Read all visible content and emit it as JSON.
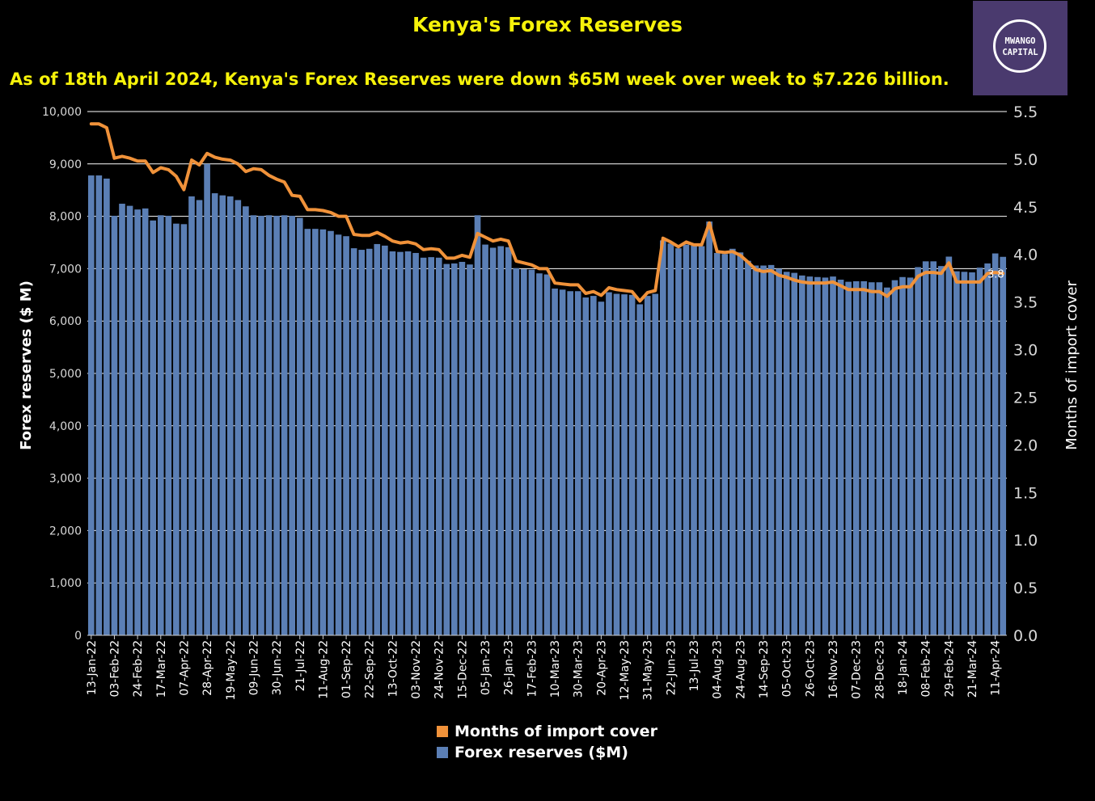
{
  "logo": {
    "line1": "MWANGO",
    "line2": "CAPITAL"
  },
  "colors": {
    "bars": "#5b7fb5",
    "line": "#f0923a",
    "title": "#f6f20a",
    "background": "#000000",
    "logo_bg": "#4a3a6e"
  },
  "chart_data": {
    "type": "bar+line",
    "title": "Kenya's Forex Reserves",
    "subtitle": "As of 18th April 2024, Kenya's Forex Reserves were down $65M week over week to $7.226 billion.",
    "ylabel": "Forex reserves ($ M)",
    "y2label": "Months of import cover",
    "ylim": [
      0,
      10000
    ],
    "y2lim": [
      0,
      5.5
    ],
    "yticks": [
      "0",
      "1,000",
      "2,000",
      "3,000",
      "4,000",
      "5,000",
      "6,000",
      "7,000",
      "8,000",
      "9,000",
      "10,000"
    ],
    "y2ticks": [
      "0.0",
      "0.5",
      "1.0",
      "1.5",
      "2.0",
      "2.5",
      "3.0",
      "3.5",
      "4.0",
      "4.5",
      "5.0",
      "5.5"
    ],
    "xtick_labels": [
      "13-Jan-22",
      "03-Feb-22",
      "24-Feb-22",
      "17-Mar-22",
      "07-Apr-22",
      "28-Apr-22",
      "19-May-22",
      "09-Jun-22",
      "30-Jun-22",
      "21-Jul-22",
      "11-Aug-22",
      "01-Sep-22",
      "22-Sep-22",
      "13-Oct-22",
      "03-Nov-22",
      "24-Nov-22",
      "15-Dec-22",
      "05-Jan-23",
      "26-Jan-23",
      "17-Feb-23",
      "10-Mar-23",
      "30-Mar-23",
      "20-Apr-23",
      "12-May-23",
      "31-May-23",
      "22-Jun-23",
      "13-Jul-23",
      "04-Aug-23",
      "24-Aug-23",
      "14-Sep-23",
      "05-Oct-23",
      "26-Oct-23",
      "16-Nov-23",
      "07-Dec-23",
      "28-Dec-23",
      "18-Jan-24",
      "08-Feb-24",
      "29-Feb-24",
      "21-Mar-24",
      "11-Apr-24"
    ],
    "last_line_label": "3.8",
    "series": [
      {
        "name": "Months of import cover",
        "type": "line",
        "values": [
          5.37,
          5.37,
          5.33,
          5.01,
          5.03,
          5.01,
          4.98,
          4.98,
          4.86,
          4.91,
          4.89,
          4.82,
          4.68,
          4.99,
          4.94,
          5.06,
          5.02,
          5.0,
          4.99,
          4.95,
          4.87,
          4.9,
          4.89,
          4.83,
          4.79,
          4.76,
          4.62,
          4.61,
          4.47,
          4.47,
          4.46,
          4.44,
          4.4,
          4.4,
          4.21,
          4.2,
          4.2,
          4.23,
          4.19,
          4.14,
          4.12,
          4.13,
          4.11,
          4.05,
          4.06,
          4.05,
          3.96,
          3.96,
          3.99,
          3.97,
          4.22,
          4.18,
          4.14,
          4.16,
          4.14,
          3.93,
          3.91,
          3.89,
          3.85,
          3.85,
          3.7,
          3.69,
          3.68,
          3.68,
          3.59,
          3.61,
          3.57,
          3.65,
          3.63,
          3.62,
          3.61,
          3.51,
          3.6,
          3.62,
          4.17,
          4.13,
          4.08,
          4.13,
          4.1,
          4.1,
          4.33,
          4.03,
          4.02,
          4.03,
          3.99,
          3.92,
          3.84,
          3.82,
          3.83,
          3.78,
          3.76,
          3.73,
          3.71,
          3.7,
          3.7,
          3.7,
          3.71,
          3.67,
          3.63,
          3.63,
          3.63,
          3.61,
          3.61,
          3.56,
          3.64,
          3.66,
          3.66,
          3.77,
          3.81,
          3.81,
          3.8,
          3.91,
          3.71,
          3.71,
          3.71,
          3.71,
          3.8,
          3.81,
          3.8
        ]
      },
      {
        "name": "Forex reserves ($M)",
        "type": "bar",
        "values": [
          8780,
          8780,
          8720,
          8010,
          8240,
          8200,
          8130,
          8150,
          7920,
          8020,
          8010,
          7860,
          7850,
          8380,
          8310,
          9000,
          8440,
          8400,
          8380,
          8310,
          8190,
          8020,
          8010,
          8020,
          8010,
          8020,
          8010,
          7970,
          7760,
          7760,
          7750,
          7720,
          7650,
          7620,
          7390,
          7360,
          7380,
          7470,
          7440,
          7330,
          7320,
          7330,
          7300,
          7210,
          7220,
          7210,
          7090,
          7100,
          7130,
          7080,
          8020,
          7460,
          7400,
          7430,
          7410,
          7010,
          6990,
          6980,
          6910,
          6890,
          6620,
          6600,
          6570,
          6570,
          6450,
          6480,
          6370,
          6550,
          6520,
          6510,
          6500,
          6320,
          6480,
          6520,
          7540,
          7480,
          7390,
          7460,
          7440,
          7430,
          7900,
          7300,
          7280,
          7380,
          7310,
          7150,
          7060,
          7060,
          7070,
          7000,
          6940,
          6920,
          6870,
          6850,
          6840,
          6830,
          6850,
          6790,
          6750,
          6760,
          6760,
          6740,
          6740,
          6640,
          6780,
          6840,
          6830,
          7030,
          7140,
          7140,
          7050,
          7230,
          6950,
          6940,
          6930,
          7020,
          7100,
          7291,
          7226
        ]
      }
    ]
  },
  "legend": {
    "entries": [
      {
        "label": "Months of import cover",
        "color": "#f0923a"
      },
      {
        "label": "Forex reserves ($M)",
        "color": "#5b7fb5"
      }
    ]
  }
}
